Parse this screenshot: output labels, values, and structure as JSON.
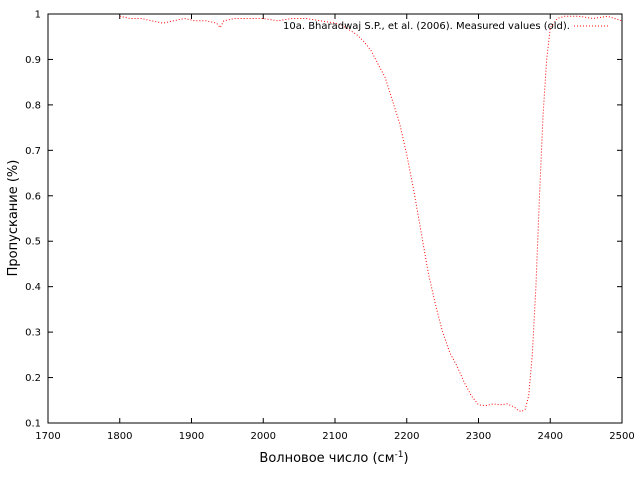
{
  "chart_data": {
    "type": "line",
    "xlabel": "Волновое число (см",
    "xlabel_sup": "-1",
    "xlabel_end": ")",
    "ylabel": "Пропускание (%)",
    "xlim": [
      1700,
      2500
    ],
    "ylim": [
      0.1,
      1.0
    ],
    "xticks": [
      1700,
      1800,
      1900,
      2000,
      2100,
      2200,
      2300,
      2400,
      2500
    ],
    "yticks": [
      0.1,
      0.2,
      0.3,
      0.4,
      0.5,
      0.6,
      0.7,
      0.8,
      0.9,
      1.0
    ],
    "ytick_labels": [
      "0.1",
      "0.2",
      "0.3",
      "0.4",
      "0.5",
      "0.6",
      "0.7",
      "0.8",
      "0.9",
      "1"
    ],
    "grid": false,
    "legend_position": "top-right",
    "series": [
      {
        "name": "10a. Bharadwaj S.P., et al. (2006). Measured values (old).",
        "color": "#ff0000",
        "style": "dotted",
        "x": [
          1800,
          1815,
          1830,
          1845,
          1860,
          1875,
          1890,
          1905,
          1920,
          1935,
          1940,
          1945,
          1960,
          1980,
          2000,
          2020,
          2040,
          2060,
          2080,
          2100,
          2110,
          2120,
          2130,
          2140,
          2150,
          2160,
          2170,
          2180,
          2190,
          2200,
          2210,
          2220,
          2230,
          2240,
          2250,
          2260,
          2270,
          2280,
          2290,
          2300,
          2310,
          2320,
          2330,
          2340,
          2350,
          2355,
          2360,
          2365,
          2370,
          2375,
          2380,
          2385,
          2390,
          2395,
          2400,
          2410,
          2420,
          2440,
          2460,
          2480,
          2500
        ],
        "y": [
          0.995,
          0.99,
          0.99,
          0.985,
          0.98,
          0.985,
          0.99,
          0.985,
          0.985,
          0.98,
          0.97,
          0.985,
          0.99,
          0.99,
          0.99,
          0.985,
          0.99,
          0.99,
          0.985,
          0.98,
          0.975,
          0.965,
          0.955,
          0.94,
          0.92,
          0.89,
          0.86,
          0.81,
          0.76,
          0.69,
          0.61,
          0.52,
          0.43,
          0.36,
          0.3,
          0.255,
          0.225,
          0.19,
          0.16,
          0.14,
          0.138,
          0.142,
          0.14,
          0.142,
          0.135,
          0.128,
          0.125,
          0.13,
          0.16,
          0.25,
          0.4,
          0.6,
          0.78,
          0.9,
          0.97,
          0.99,
          0.995,
          0.995,
          0.99,
          0.995,
          0.985
        ]
      }
    ]
  }
}
